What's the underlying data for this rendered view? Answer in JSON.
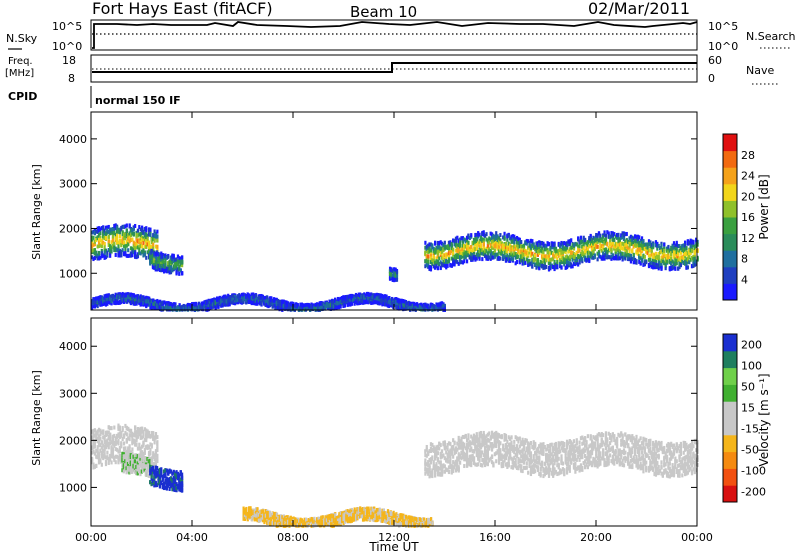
{
  "header": {
    "station": "Fort Hays East (fitACF)",
    "beam": "Beam 10",
    "date": "02/Mar/2011"
  },
  "meta_panels": {
    "nsky": {
      "label": "N.Sky",
      "ticks": [
        "10^5",
        "10^0"
      ],
      "right_label": "N.Search",
      "right_ticks": [
        "10^5",
        "10^0"
      ]
    },
    "freq": {
      "label_lines": [
        "Freq.",
        "[MHz]"
      ],
      "ticks": [
        "18",
        "8"
      ],
      "right_label": "Nave",
      "right_ticks": [
        "60",
        "0"
      ]
    },
    "cpid": {
      "label": "CPID",
      "value": "normal 150 IF"
    }
  },
  "colors": {
    "power": [
      "#1a1aff",
      "#1f3fc0",
      "#1f6f9f",
      "#2a8c5a",
      "#3aa040",
      "#8fc02a",
      "#f2d51a",
      "#f5a21a",
      "#f26a10",
      "#e01010"
    ],
    "velocity": [
      "#d81010",
      "#f25010",
      "#f58a10",
      "#f5b51a",
      "#c8c8c8",
      "#c8c8c8",
      "#40b030",
      "#6fd04a",
      "#1f7f5f",
      "#1a2fd0"
    ]
  },
  "chart_data": [
    {
      "type": "heatmap",
      "name": "power",
      "xlabel": "",
      "ylabel": "Slant Range [km]",
      "x_range_hours": [
        0,
        24
      ],
      "ylim": [
        180,
        4600
      ],
      "y_ticks": [
        "1000",
        "2000",
        "3000",
        "4000"
      ],
      "colorbar": {
        "label": "Power [dB]",
        "range": [
          0,
          32
        ],
        "ticks": [
          "4",
          "8",
          "12",
          "16",
          "20",
          "24",
          "28"
        ]
      },
      "echo_regions": [
        {
          "t_start": 0.0,
          "t_end": 2.6,
          "range_center_km": 1620,
          "range_width_km": 700,
          "peak_db": 24,
          "description": "early strong band"
        },
        {
          "t_start": 2.3,
          "t_end": 3.6,
          "range_center_km": 1300,
          "range_width_km": 400,
          "peak_db": 16
        },
        {
          "t_start": 11.8,
          "t_end": 12.1,
          "range_center_km": 950,
          "range_width_km": 250,
          "peak_db": 14
        },
        {
          "t_start": 13.2,
          "t_end": 24.0,
          "range_center_km": 1500,
          "range_width_km": 600,
          "peak_db": 24,
          "description": "evening band"
        },
        {
          "t_start": 0.0,
          "t_end": 14.0,
          "range_center_km": 320,
          "range_width_km": 200,
          "peak_db": 8,
          "description": "near-range ground echoes"
        }
      ]
    },
    {
      "type": "heatmap",
      "name": "velocity",
      "xlabel": "Time UT",
      "ylabel": "Slant Range [km]",
      "x_ticks": [
        "00:00",
        "04:00",
        "08:00",
        "12:00",
        "16:00",
        "20:00",
        "00:00"
      ],
      "x_range_hours": [
        0,
        24
      ],
      "ylim": [
        180,
        4600
      ],
      "y_ticks": [
        "1000",
        "2000",
        "3000",
        "4000"
      ],
      "colorbar": {
        "label": "Velocity [m s⁻¹]",
        "range": [
          -250,
          250
        ],
        "ticks": [
          "200",
          "100",
          "50",
          "15",
          "-15",
          "-50",
          "-100",
          "-200"
        ]
      },
      "echo_regions": [
        {
          "t_start": 0.0,
          "t_end": 2.6,
          "range_center_km": 1800,
          "range_width_km": 800,
          "velocity_ms": 0,
          "description": "ground-scatter grey"
        },
        {
          "t_start": 1.2,
          "t_end": 2.4,
          "range_center_km": 1400,
          "range_width_km": 400,
          "velocity_ms": 40
        },
        {
          "t_start": 2.3,
          "t_end": 3.6,
          "range_center_km": 1250,
          "range_width_km": 400,
          "velocity_ms": 220
        },
        {
          "t_start": 13.2,
          "t_end": 24.0,
          "range_center_km": 1700,
          "range_width_km": 700,
          "velocity_ms": 0
        },
        {
          "t_start": 6.0,
          "t_end": 13.5,
          "range_center_km": 320,
          "range_width_km": 250,
          "velocity_ms": -60,
          "description": "near-range orange echoes"
        }
      ]
    }
  ]
}
